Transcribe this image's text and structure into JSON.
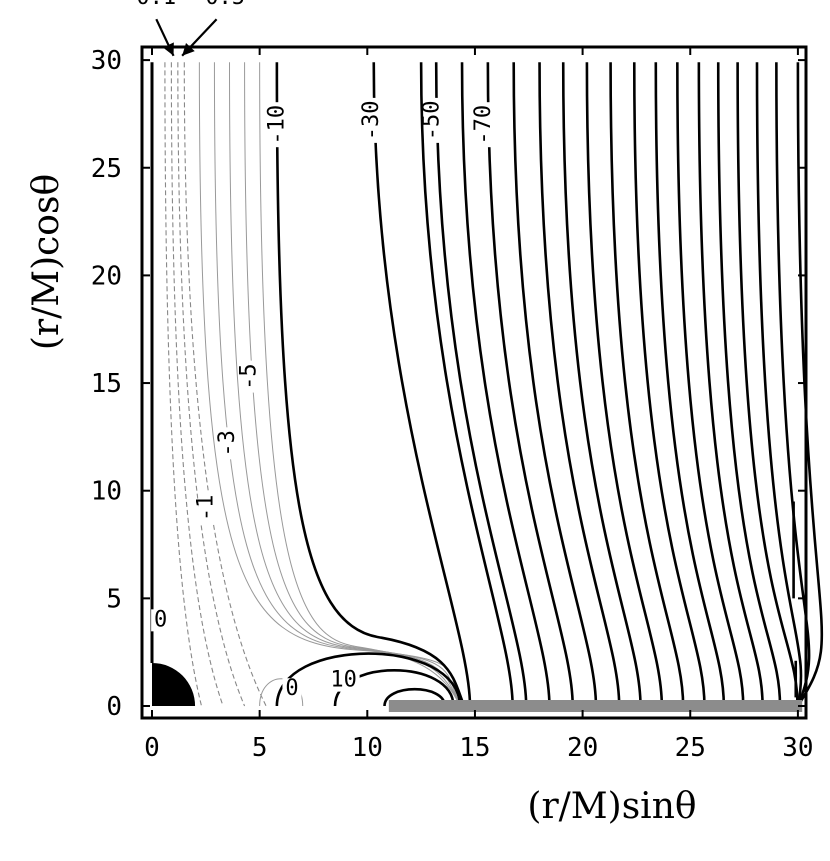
{
  "chart_data": {
    "type": "contour",
    "xlabel": "(r/M)sinθ",
    "ylabel": "(r/M)cosθ",
    "xlim": [
      0,
      30
    ],
    "ylim": [
      0,
      30
    ],
    "xticks": [
      "0",
      "5",
      "10",
      "15",
      "20",
      "25",
      "30"
    ],
    "yticks": [
      "0",
      "5",
      "10",
      "15",
      "20",
      "25",
      "30"
    ],
    "xtick_values": [
      0,
      5,
      10,
      15,
      20,
      25,
      30
    ],
    "ytick_values": [
      0,
      5,
      10,
      15,
      20,
      25,
      30
    ],
    "black_hole_radius": 2,
    "disk": {
      "x_start": 11,
      "x_end": 30.2,
      "color": "#8c8c8c"
    },
    "contour_labels": [
      {
        "text": "0.1",
        "x": 0.2,
        "y": 32.6,
        "rotate": 0
      },
      {
        "text": "0.5",
        "x": 3.4,
        "y": 32.6,
        "rotate": 0
      },
      {
        "text": "-10",
        "x": 6.1,
        "y": 27.0,
        "rotate": -90
      },
      {
        "text": "-30",
        "x": 10.5,
        "y": 27.2,
        "rotate": -90
      },
      {
        "text": "-50",
        "x": 13.3,
        "y": 27.2,
        "rotate": -90
      },
      {
        "text": "-70",
        "x": 15.7,
        "y": 27.0,
        "rotate": -90
      },
      {
        "text": "-5",
        "x": 4.8,
        "y": 15.3,
        "rotate": -90
      },
      {
        "text": "-3",
        "x": 3.8,
        "y": 12.2,
        "rotate": -90
      },
      {
        "text": "-1",
        "x": 2.8,
        "y": 9.2,
        "rotate": -90
      },
      {
        "text": "0",
        "x": 0.4,
        "y": 3.7,
        "rotate": 0
      },
      {
        "text": "0",
        "x": 6.5,
        "y": 0.5,
        "rotate": 0
      },
      {
        "text": "10",
        "x": 8.9,
        "y": 0.9,
        "rotate": 0
      }
    ],
    "pointers": [
      {
        "label": "0.1",
        "x1": 0.2,
        "y1": 31.9,
        "x2": 1.0,
        "y2": 30.2
      },
      {
        "label": "0.5",
        "x1": 3.0,
        "y1": 31.9,
        "x2": 1.4,
        "y2": 30.2
      }
    ],
    "dashed_contours": [
      {
        "x_at_top": 0.6,
        "x_low": 1.3,
        "x_end": 2.3
      },
      {
        "x_at_top": 0.9,
        "x_low": 1.9,
        "x_end": 3.3
      },
      {
        "x_at_top": 1.2,
        "x_low": 2.6,
        "x_end": 4.3
      },
      {
        "x_at_top": 1.5,
        "x_low": 3.3,
        "x_end": 5.3
      }
    ],
    "thin_contours": [
      {
        "value": -1,
        "x_at_top": 2.2
      },
      {
        "value": -2,
        "x_at_top": 2.9
      },
      {
        "value": -3,
        "x_at_top": 3.6
      },
      {
        "value": -4,
        "x_at_top": 4.3
      },
      {
        "value": -5,
        "x_at_top": 5.0
      }
    ],
    "separatrix": {
      "x_at_top": 5.8,
      "ridge_x": 10.5,
      "ridge_y": 3.2,
      "end_x": 14.5
    },
    "thick_lines_x_at_top": [
      10.3,
      12.5,
      13.2,
      14.4,
      15.6,
      16.8,
      18.0,
      19.1,
      20.2,
      21.3,
      22.4,
      23.4,
      24.4,
      25.4,
      26.3,
      27.2,
      28.1,
      29.0,
      30.0
    ],
    "short_lines_right": [
      {
        "x": 29.8,
        "y_from": 9.5,
        "y_to": 5.0
      },
      {
        "x": 29.9,
        "y_from": 2.1,
        "y_to": 0.4
      }
    ],
    "inner_loops": [
      {
        "x_start": 5.8,
        "x_end": 14.3,
        "height": 2.5,
        "style": "thick"
      },
      {
        "x_start": 8.5,
        "x_end": 14.0,
        "height": 1.7,
        "style": "thick"
      },
      {
        "x_start": 10.8,
        "x_end": 13.6,
        "height": 0.8,
        "style": "thick"
      },
      {
        "x_start": 5.0,
        "x_end": 7.0,
        "height": 1.3,
        "style": "thin"
      }
    ]
  }
}
